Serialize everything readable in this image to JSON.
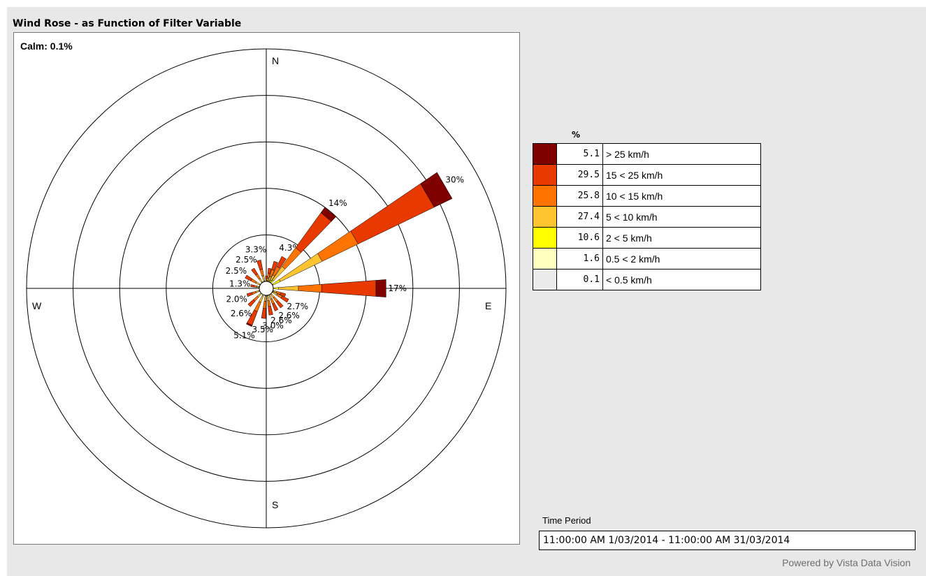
{
  "title": "Wind Rose - as Function of Filter Variable",
  "calm_label": "Calm: 0.1%",
  "legend": {
    "header": "%",
    "items": [
      {
        "color": "#800000",
        "value": "5.1",
        "label": "> 25 km/h"
      },
      {
        "color": "#e83a00",
        "value": "29.5",
        "label": "15 < 25 km/h"
      },
      {
        "color": "#ff7300",
        "value": "25.8",
        "label": "10 < 15 km/h"
      },
      {
        "color": "#ffc531",
        "value": "27.4",
        "label": "5 < 10 km/h"
      },
      {
        "color": "#ffff00",
        "value": "10.6",
        "label": "2 < 5 km/h"
      },
      {
        "color": "#ffffc0",
        "value": "1.6",
        "label": "0.5 < 2 km/h"
      },
      {
        "color": "#ebebeb",
        "value": "0.1",
        "label": "< 0.5 km/h"
      }
    ]
  },
  "time_period": {
    "label": "Time Period",
    "value": "11:00:00 AM 1/03/2014 - 11:00:00 AM 31/03/2014"
  },
  "footer": "Powered by Vista Data Vision",
  "chart_data": {
    "type": "wind-rose",
    "compass_labels": [
      "N",
      "E",
      "S",
      "W"
    ],
    "ring_max_percent": 35,
    "ring_count": 5,
    "series_colors": [
      "#ebebeb",
      "#ffffc0",
      "#ffff00",
      "#ffc531",
      "#ff7300",
      "#e83a00",
      "#800000"
    ],
    "series_names": [
      "< 0.5 km/h",
      "0.5 < 2 km/h",
      "2 < 5 km/h",
      "5 < 10 km/h",
      "10 < 15 km/h",
      "15 < 25 km/h",
      "> 25 km/h"
    ],
    "sectors": [
      {
        "dir": 0,
        "total": 0.8,
        "label": "",
        "parts": [
          0,
          0,
          0,
          0.2,
          0.3,
          0.3,
          0
        ]
      },
      {
        "dir": 10,
        "total": 2.0,
        "label": "",
        "parts": [
          0,
          0,
          0.1,
          0.4,
          0.7,
          0.8,
          0
        ]
      },
      {
        "dir": 20,
        "total": 3.2,
        "label": "",
        "parts": [
          0,
          0,
          0.2,
          0.6,
          1.1,
          1.3,
          0
        ]
      },
      {
        "dir": 30,
        "total": 4.3,
        "label": "4.3%",
        "parts": [
          0,
          0,
          0.3,
          0.9,
          1.4,
          1.7,
          0
        ]
      },
      {
        "dir": 40,
        "total": 14,
        "label": "14%",
        "parts": [
          0,
          0,
          0.5,
          2.5,
          3.5,
          6.5,
          1.0
        ]
      },
      {
        "dir": 60,
        "total": 30,
        "label": "30%",
        "parts": [
          0,
          0.1,
          1.2,
          7.0,
          6.0,
          12.7,
          3.0
        ]
      },
      {
        "dir": 90,
        "total": 17,
        "label": "17%",
        "parts": [
          0,
          0,
          0.8,
          3.0,
          3.5,
          8.2,
          1.5
        ]
      },
      {
        "dir": 110,
        "total": 2.0,
        "label": "",
        "parts": [
          0,
          0,
          0.1,
          0.5,
          0.6,
          0.8,
          0
        ]
      },
      {
        "dir": 120,
        "total": 2.7,
        "label": "2.7%",
        "parts": [
          0,
          0,
          0.1,
          0.7,
          0.8,
          1.1,
          0
        ]
      },
      {
        "dir": 140,
        "total": 2.6,
        "label": "2.6%",
        "parts": [
          0,
          0,
          0.1,
          0.6,
          0.8,
          1.1,
          0
        ]
      },
      {
        "dir": 155,
        "total": 2.6,
        "label": "2.6%",
        "parts": [
          0,
          0,
          0.1,
          0.6,
          0.8,
          1.1,
          0
        ]
      },
      {
        "dir": 170,
        "total": 3.0,
        "label": "3.0%",
        "parts": [
          0,
          0,
          0.1,
          0.7,
          0.9,
          1.3,
          0
        ]
      },
      {
        "dir": 185,
        "total": 3.5,
        "label": "3.5%",
        "parts": [
          0,
          0,
          0.1,
          0.8,
          1.1,
          1.5,
          0
        ]
      },
      {
        "dir": 205,
        "total": 5.1,
        "label": "5.1%",
        "parts": [
          0,
          0,
          0.2,
          1.0,
          1.5,
          2.2,
          0.2
        ]
      },
      {
        "dir": 225,
        "total": 2.6,
        "label": "2.6%",
        "parts": [
          0,
          0,
          0.1,
          0.6,
          0.8,
          1.1,
          0
        ]
      },
      {
        "dir": 250,
        "total": 2.0,
        "label": "2.0%",
        "parts": [
          0,
          0,
          0.1,
          0.5,
          0.6,
          0.8,
          0
        ]
      },
      {
        "dir": 280,
        "total": 1.3,
        "label": "1.3%",
        "parts": [
          0,
          0,
          0.1,
          0.3,
          0.4,
          0.5,
          0
        ]
      },
      {
        "dir": 300,
        "total": 2.5,
        "label": "2.5%",
        "parts": [
          0,
          0,
          0.1,
          0.6,
          0.8,
          1.0,
          0
        ]
      },
      {
        "dir": 325,
        "total": 2.5,
        "label": "2.5%",
        "parts": [
          0,
          0,
          0.1,
          0.6,
          0.8,
          1.0,
          0
        ]
      },
      {
        "dir": 345,
        "total": 3.3,
        "label": "3.3%",
        "parts": [
          0,
          0,
          0.1,
          0.8,
          1.0,
          1.4,
          0
        ]
      }
    ]
  }
}
